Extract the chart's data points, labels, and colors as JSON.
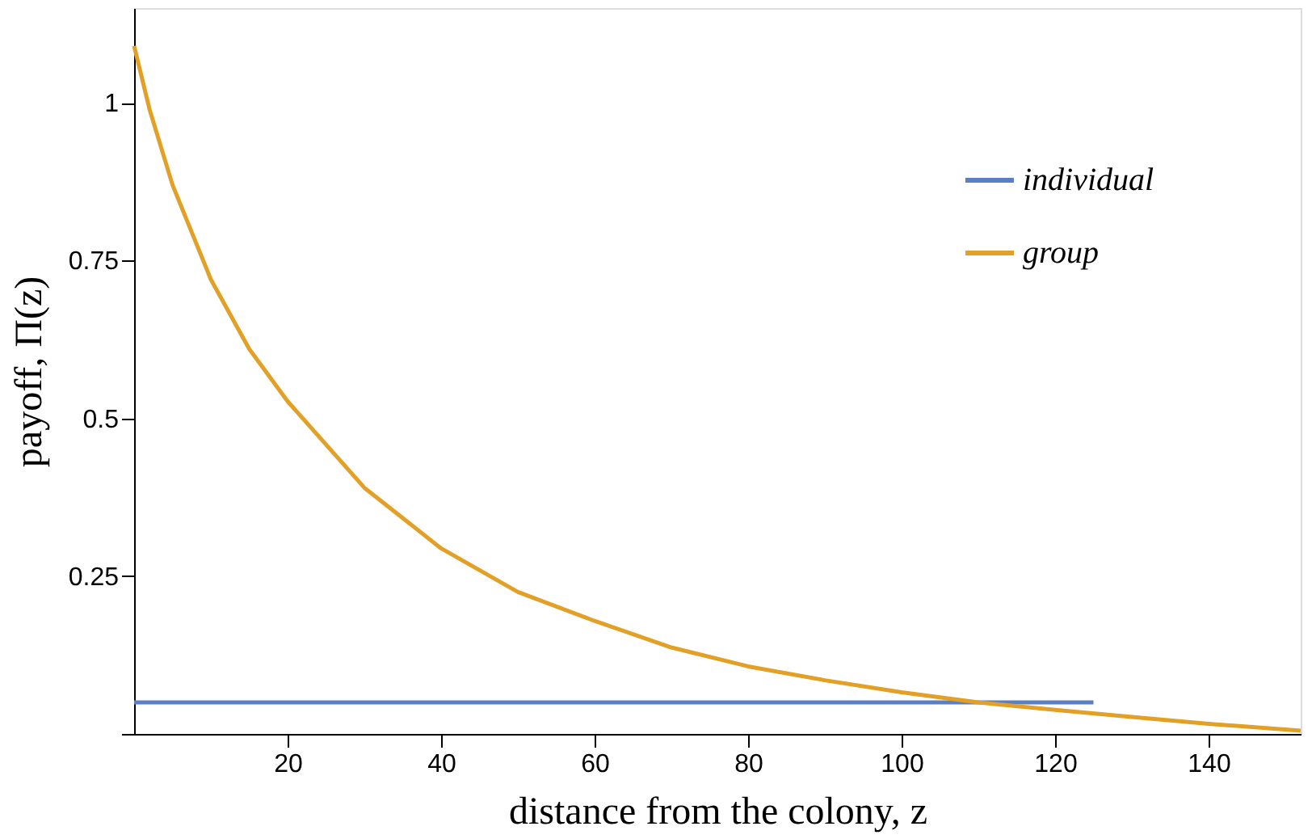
{
  "chart_data": {
    "type": "line",
    "xlabel": "distance from the colony, z",
    "ylabel": "payoff, Π(z)",
    "series": [
      {
        "name": "individual",
        "color": "#5b7fc4",
        "x": [
          0,
          125
        ],
        "values": [
          0.05,
          0.05
        ]
      },
      {
        "name": "group",
        "color": "#e2a026",
        "x": [
          0,
          2,
          5,
          10,
          15,
          20,
          30,
          40,
          50,
          60,
          70,
          80,
          90,
          100,
          110,
          120,
          130,
          140,
          152
        ],
        "values": [
          1.09,
          0.99,
          0.87,
          0.72,
          0.61,
          0.527,
          0.39,
          0.294,
          0.225,
          0.179,
          0.137,
          0.107,
          0.085,
          0.066,
          0.05,
          0.038,
          0.027,
          0.016,
          0.005
        ]
      }
    ],
    "xlim": [
      0,
      152
    ],
    "ylim": [
      0,
      1.15
    ],
    "xticks": [
      20,
      40,
      60,
      80,
      100,
      120,
      140
    ],
    "yticks": [
      {
        "value": 0,
        "label": null
      },
      0.25,
      0.5,
      0.75,
      1
    ],
    "grid": false,
    "legend": "top right",
    "marker": "none",
    "line_style": "solid"
  }
}
